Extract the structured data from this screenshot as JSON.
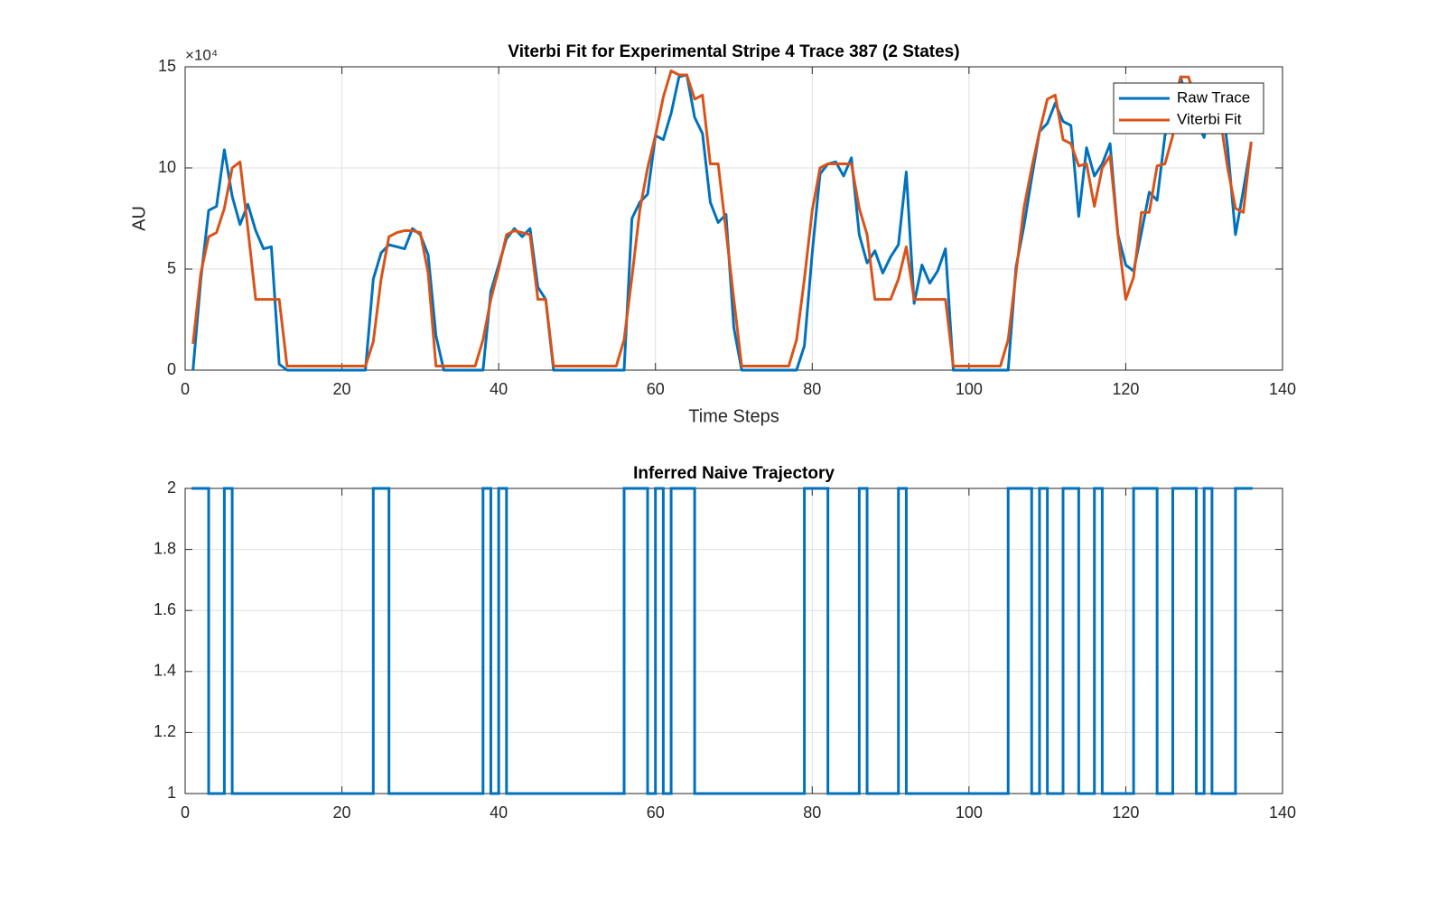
{
  "chart_data": [
    {
      "type": "line",
      "title": "Viterbi Fit for Experimental Stripe 4 Trace 387 (2 States)",
      "xlabel": "Time Steps",
      "ylabel": "AU",
      "y_scale_label": "×10⁴",
      "x": [
        1,
        2,
        3,
        4,
        5,
        6,
        7,
        8,
        9,
        10,
        11,
        12,
        13,
        14,
        15,
        16,
        17,
        18,
        19,
        20,
        21,
        22,
        23,
        24,
        25,
        26,
        27,
        28,
        29,
        30,
        31,
        32,
        33,
        34,
        35,
        36,
        37,
        38,
        39,
        40,
        41,
        42,
        43,
        44,
        45,
        46,
        47,
        48,
        49,
        50,
        51,
        52,
        53,
        54,
        55,
        56,
        57,
        58,
        59,
        60,
        61,
        62,
        63,
        64,
        65,
        66,
        67,
        68,
        69,
        70,
        71,
        72,
        73,
        74,
        75,
        76,
        77,
        78,
        79,
        80,
        81,
        82,
        83,
        84,
        85,
        86,
        87,
        88,
        89,
        90,
        91,
        92,
        93,
        94,
        95,
        96,
        97,
        98,
        99,
        100,
        101,
        102,
        103,
        104,
        105,
        106,
        107,
        108,
        109,
        110,
        111,
        112,
        113,
        114,
        115,
        116,
        117,
        118,
        119,
        120,
        121,
        122,
        123,
        124,
        125,
        126,
        127,
        128,
        129,
        130,
        131,
        132,
        133,
        134,
        135,
        136
      ],
      "series": [
        {
          "name": "Raw Trace",
          "color": "#0072bd",
          "values": [
            0,
            4.5,
            7.9,
            8.1,
            10.9,
            8.6,
            7.2,
            8.2,
            6.9,
            6.0,
            6.1,
            0.3,
            0,
            0,
            0,
            0,
            0,
            0,
            0,
            0,
            0,
            0,
            0,
            4.5,
            5.8,
            6.2,
            6.1,
            6.0,
            7.0,
            6.7,
            5.7,
            1.7,
            0,
            0,
            0,
            0,
            0,
            0,
            3.9,
            5.2,
            6.5,
            7.0,
            6.6,
            7.0,
            4.1,
            3.5,
            0,
            0,
            0,
            0,
            0,
            0,
            0,
            0,
            0,
            0,
            7.5,
            8.3,
            8.7,
            11.6,
            11.4,
            12.7,
            14.5,
            14.6,
            12.5,
            11.7,
            8.3,
            7.3,
            7.7,
            2.1,
            0,
            0,
            0,
            0,
            0,
            0,
            0,
            0,
            1.2,
            5.8,
            9.7,
            10.2,
            10.3,
            9.6,
            10.5,
            6.7,
            5.3,
            5.9,
            4.8,
            5.6,
            6.2,
            9.8,
            3.3,
            5.2,
            4.3,
            4.9,
            6.0,
            0,
            0,
            0,
            0,
            0,
            0,
            0,
            0,
            5.1,
            7.1,
            9.5,
            11.8,
            12.2,
            13.2,
            12.3,
            12.1,
            7.6,
            11.0,
            9.6,
            10.2,
            11.2,
            6.7,
            5.2,
            4.9,
            6.8,
            8.8,
            8.4,
            11.6,
            12.9,
            14.5,
            13.0,
            12.3,
            11.5,
            13.8,
            14.1,
            11.0,
            6.7,
            8.9,
            11.2
          ]
        },
        {
          "name": "Viterbi Fit",
          "color": "#d95319",
          "values": [
            1.3,
            4.8,
            6.6,
            6.8,
            8.0,
            10.0,
            10.3,
            7.0,
            3.5,
            3.5,
            3.5,
            3.5,
            0.2,
            0.2,
            0.2,
            0.2,
            0.2,
            0.2,
            0.2,
            0.2,
            0.2,
            0.2,
            0.2,
            1.4,
            4.5,
            6.6,
            6.8,
            6.9,
            6.9,
            6.8,
            4.8,
            0.2,
            0.2,
            0.2,
            0.2,
            0.2,
            0.2,
            1.5,
            3.5,
            5.0,
            6.7,
            6.9,
            6.8,
            6.7,
            3.5,
            3.5,
            0.2,
            0.2,
            0.2,
            0.2,
            0.2,
            0.2,
            0.2,
            0.2,
            0.2,
            1.5,
            4.6,
            7.9,
            10.0,
            11.6,
            13.5,
            14.8,
            14.6,
            14.6,
            13.4,
            13.6,
            10.2,
            10.2,
            6.9,
            3.5,
            0.2,
            0.2,
            0.2,
            0.2,
            0.2,
            0.2,
            0.2,
            1.5,
            4.5,
            7.9,
            10.0,
            10.2,
            10.2,
            10.2,
            10.2,
            8.0,
            6.7,
            3.5,
            3.5,
            3.5,
            4.5,
            6.1,
            3.5,
            3.5,
            3.5,
            3.5,
            3.5,
            0.2,
            0.2,
            0.2,
            0.2,
            0.2,
            0.2,
            0.2,
            1.5,
            4.8,
            8.0,
            10.0,
            11.8,
            13.4,
            13.6,
            11.4,
            11.2,
            10.1,
            10.2,
            8.1,
            10.0,
            10.6,
            6.7,
            3.5,
            4.6,
            7.8,
            7.8,
            10.1,
            10.2,
            11.6,
            14.5,
            14.5,
            13.3,
            12.1,
            13.6,
            12.6,
            10.0,
            8.0,
            7.8,
            11.3
          ]
        }
      ],
      "xlim": [
        0,
        140
      ],
      "xticks": [
        0,
        20,
        40,
        60,
        80,
        100,
        120,
        140
      ],
      "ylim": [
        0,
        15
      ],
      "yticks": [
        0,
        5,
        10,
        15
      ],
      "grid": true,
      "legend": "upper-right"
    },
    {
      "type": "stairs",
      "title": "Inferred Naive Trajectory",
      "x": [
        1,
        2,
        3,
        4,
        5,
        6,
        7,
        8,
        9,
        10,
        11,
        12,
        13,
        14,
        15,
        16,
        17,
        18,
        19,
        20,
        21,
        22,
        23,
        24,
        25,
        26,
        27,
        28,
        29,
        30,
        31,
        32,
        33,
        34,
        35,
        36,
        37,
        38,
        39,
        40,
        41,
        42,
        43,
        44,
        45,
        46,
        47,
        48,
        49,
        50,
        51,
        52,
        53,
        54,
        55,
        56,
        57,
        58,
        59,
        60,
        61,
        62,
        63,
        64,
        65,
        66,
        67,
        68,
        69,
        70,
        71,
        72,
        73,
        74,
        75,
        76,
        77,
        78,
        79,
        80,
        81,
        82,
        83,
        84,
        85,
        86,
        87,
        88,
        89,
        90,
        91,
        92,
        93,
        94,
        95,
        96,
        97,
        98,
        99,
        100,
        101,
        102,
        103,
        104,
        105,
        106,
        107,
        108,
        109,
        110,
        111,
        112,
        113,
        114,
        115,
        116,
        117,
        118,
        119,
        120,
        121,
        122,
        123,
        124,
        125,
        126,
        127,
        128,
        129,
        130,
        131,
        132,
        133,
        134,
        135,
        136
      ],
      "color": "#0072bd",
      "values": [
        2,
        2,
        1,
        1,
        2,
        1,
        1,
        1,
        1,
        1,
        1,
        1,
        1,
        1,
        1,
        1,
        1,
        1,
        1,
        1,
        1,
        1,
        1,
        2,
        2,
        1,
        1,
        1,
        1,
        1,
        1,
        1,
        1,
        1,
        1,
        1,
        1,
        2,
        1,
        2,
        1,
        1,
        1,
        1,
        1,
        1,
        1,
        1,
        1,
        1,
        1,
        1,
        1,
        1,
        1,
        2,
        2,
        2,
        1,
        2,
        1,
        2,
        2,
        2,
        1,
        1,
        1,
        1,
        1,
        1,
        1,
        1,
        1,
        1,
        1,
        1,
        1,
        1,
        2,
        2,
        2,
        1,
        1,
        1,
        1,
        2,
        1,
        1,
        1,
        1,
        2,
        1,
        1,
        1,
        1,
        1,
        1,
        1,
        1,
        1,
        1,
        1,
        1,
        1,
        2,
        2,
        2,
        1,
        2,
        1,
        1,
        2,
        2,
        1,
        1,
        2,
        1,
        1,
        1,
        1,
        2,
        2,
        2,
        1,
        1,
        2,
        2,
        2,
        1,
        2,
        1,
        1,
        1,
        2,
        2,
        2
      ],
      "xlim": [
        0,
        140
      ],
      "xticks": [
        0,
        20,
        40,
        60,
        80,
        100,
        120,
        140
      ],
      "ylim": [
        1,
        2
      ],
      "yticks": [
        1,
        1.2,
        1.4,
        1.6,
        1.8,
        2
      ],
      "grid": true
    }
  ]
}
